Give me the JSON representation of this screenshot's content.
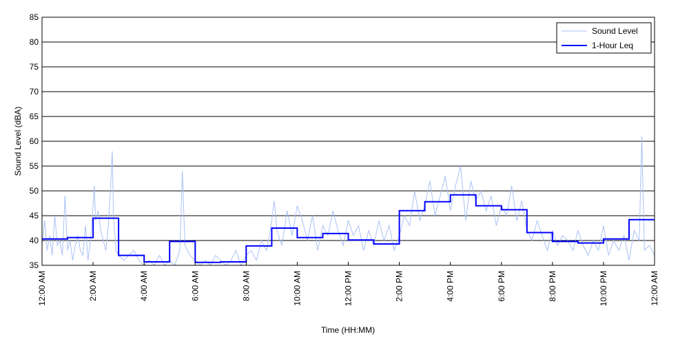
{
  "chart_data": {
    "type": "line",
    "title": "",
    "xlabel": "Time (HH:MM)",
    "ylabel": "Sound Level (dBA)",
    "xlim": [
      0,
      24
    ],
    "ylim": [
      35,
      85
    ],
    "yticks": [
      35,
      40,
      45,
      50,
      55,
      60,
      65,
      70,
      75,
      80,
      85
    ],
    "xticks": [
      {
        "hour": 0,
        "label": "12:00 AM"
      },
      {
        "hour": 2,
        "label": "2:00 AM"
      },
      {
        "hour": 4,
        "label": "4:00 AM"
      },
      {
        "hour": 6,
        "label": "6:00 AM"
      },
      {
        "hour": 8,
        "label": "8:00 AM"
      },
      {
        "hour": 10,
        "label": "10:00 AM"
      },
      {
        "hour": 12,
        "label": "12:00 PM"
      },
      {
        "hour": 14,
        "label": "2:00 PM"
      },
      {
        "hour": 16,
        "label": "4:00 PM"
      },
      {
        "hour": 18,
        "label": "6:00 PM"
      },
      {
        "hour": 20,
        "label": "8:00 PM"
      },
      {
        "hour": 22,
        "label": "10:00 PM"
      },
      {
        "hour": 24,
        "label": "12:00 AM"
      }
    ],
    "grid": "horizontal",
    "legend_position": "top-right",
    "series": [
      {
        "name": "Sound Level",
        "color": "#a9c1f5",
        "x": [
          0.0,
          0.1,
          0.2,
          0.3,
          0.4,
          0.5,
          0.6,
          0.7,
          0.8,
          0.9,
          1.0,
          1.1,
          1.2,
          1.3,
          1.4,
          1.5,
          1.6,
          1.7,
          1.8,
          1.9,
          2.0,
          2.05,
          2.1,
          2.2,
          2.3,
          2.4,
          2.5,
          2.6,
          2.7,
          2.75,
          2.8,
          2.9,
          3.0,
          3.2,
          3.4,
          3.6,
          3.8,
          4.0,
          4.2,
          4.4,
          4.6,
          4.8,
          5.0,
          5.2,
          5.4,
          5.5,
          5.6,
          5.8,
          6.0,
          6.2,
          6.4,
          6.6,
          6.8,
          7.0,
          7.2,
          7.4,
          7.6,
          7.8,
          8.0,
          8.2,
          8.4,
          8.6,
          8.8,
          9.0,
          9.1,
          9.2,
          9.4,
          9.6,
          9.8,
          10.0,
          10.2,
          10.4,
          10.6,
          10.8,
          11.0,
          11.2,
          11.4,
          11.6,
          11.8,
          12.0,
          12.2,
          12.4,
          12.6,
          12.8,
          13.0,
          13.2,
          13.4,
          13.6,
          13.8,
          14.0,
          14.2,
          14.4,
          14.6,
          14.8,
          15.0,
          15.2,
          15.4,
          15.6,
          15.8,
          16.0,
          16.2,
          16.4,
          16.6,
          16.8,
          17.0,
          17.2,
          17.4,
          17.6,
          17.8,
          18.0,
          18.2,
          18.4,
          18.6,
          18.8,
          19.0,
          19.2,
          19.4,
          19.6,
          19.8,
          20.0,
          20.2,
          20.4,
          20.6,
          20.8,
          21.0,
          21.2,
          21.4,
          21.6,
          21.8,
          22.0,
          22.2,
          22.4,
          22.6,
          22.8,
          23.0,
          23.2,
          23.4,
          23.5,
          23.6,
          23.8,
          24.0
        ],
        "values": [
          39,
          44,
          38,
          41,
          37,
          45,
          39,
          40,
          37,
          49,
          38,
          40,
          36,
          39,
          41,
          38,
          37,
          43,
          36,
          40,
          47,
          51,
          44,
          46,
          42,
          40,
          38,
          43,
          52,
          58,
          45,
          38,
          37,
          36,
          37,
          38,
          36,
          35,
          36,
          35,
          37,
          35,
          36,
          35,
          38,
          54,
          39,
          37,
          36,
          35,
          36,
          35,
          37,
          36,
          35,
          36,
          38,
          35,
          37,
          38,
          36,
          40,
          38,
          44,
          48,
          42,
          39,
          46,
          41,
          47,
          44,
          40,
          45,
          38,
          43,
          41,
          46,
          42,
          39,
          44,
          41,
          43,
          38,
          42,
          39,
          44,
          40,
          43,
          38,
          41,
          45,
          43,
          50,
          44,
          47,
          52,
          45,
          49,
          53,
          46,
          51,
          55,
          44,
          52,
          48,
          50,
          46,
          49,
          43,
          47,
          45,
          51,
          44,
          48,
          42,
          40,
          44,
          41,
          38,
          42,
          39,
          41,
          40,
          38,
          42,
          39,
          37,
          40,
          38,
          43,
          37,
          40,
          38,
          41,
          36,
          42,
          40,
          61,
          38,
          39,
          37
        ]
      },
      {
        "name": "1-Hour Leq",
        "color": "#0000ff",
        "steps": [
          40.3,
          40.6,
          44.5,
          37.0,
          35.7,
          39.8,
          35.6,
          35.7,
          38.9,
          42.5,
          40.6,
          41.4,
          40.1,
          39.3,
          46.0,
          47.8,
          49.2,
          47.0,
          46.2,
          41.6,
          39.8,
          39.5,
          40.3,
          44.2
        ]
      }
    ]
  }
}
